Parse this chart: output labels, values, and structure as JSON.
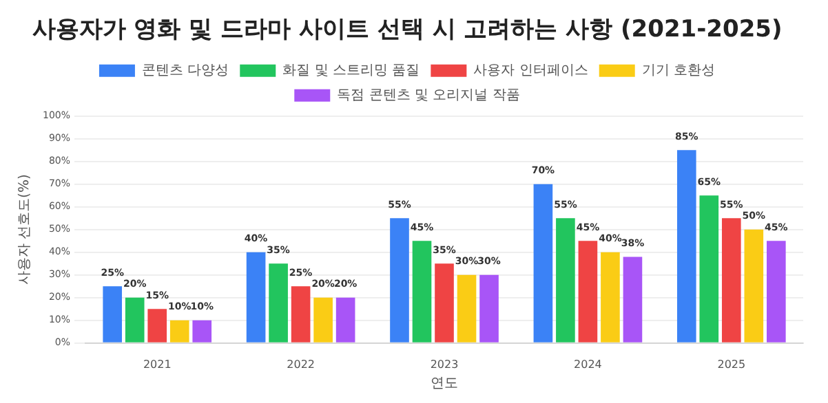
{
  "chart_data": {
    "type": "bar",
    "title": "사용자가 영화 및 드라마 사이트 선택 시 고려하는 사항 (2021-2025)",
    "xlabel": "연도",
    "ylabel": "사용자 선호도(%)",
    "categories": [
      "2021",
      "2022",
      "2023",
      "2024",
      "2025"
    ],
    "series": [
      {
        "name": "콘텐츠 다양성",
        "color": "#3b82f6",
        "values": [
          25,
          40,
          55,
          70,
          85
        ],
        "value_labels": [
          "25%",
          "40%",
          "55%",
          "70%",
          "85%"
        ]
      },
      {
        "name": "화질 및 스트리밍 품질",
        "color": "#22c55e",
        "values": [
          20,
          35,
          45,
          55,
          65
        ],
        "value_labels": [
          "20%",
          "35%",
          "45%",
          "55%",
          "65%"
        ]
      },
      {
        "name": "사용자 인터페이스",
        "color": "#ef4444",
        "values": [
          15,
          25,
          35,
          45,
          55
        ],
        "value_labels": [
          "15%",
          "25%",
          "35%",
          "45%",
          "55%"
        ]
      },
      {
        "name": "기기 호환성",
        "color": "#facc15",
        "values": [
          10,
          20,
          30,
          40,
          50
        ],
        "value_labels": [
          "10%",
          "20%",
          "30%",
          "40%",
          "50%"
        ]
      },
      {
        "name": "독점 콘텐츠 및 오리지널 작품",
        "color": "#a855f7",
        "values": [
          10,
          20,
          30,
          38,
          45
        ],
        "value_labels": [
          "10%",
          "20%",
          "30%",
          "38%",
          "45%"
        ]
      }
    ],
    "ylim": [
      0,
      100
    ],
    "yticks": [
      {
        "value": 0,
        "label": "0%"
      },
      {
        "value": 10,
        "label": "10%"
      },
      {
        "value": 20,
        "label": "20%"
      },
      {
        "value": 30,
        "label": "30%"
      },
      {
        "value": 40,
        "label": "40%"
      },
      {
        "value": 50,
        "label": "50%"
      },
      {
        "value": 60,
        "label": "60%"
      },
      {
        "value": 70,
        "label": "70%"
      },
      {
        "value": 80,
        "label": "80%"
      },
      {
        "value": 90,
        "label": "90%"
      },
      {
        "value": 100,
        "label": "100%"
      }
    ],
    "grid": "y",
    "legend": "top"
  }
}
